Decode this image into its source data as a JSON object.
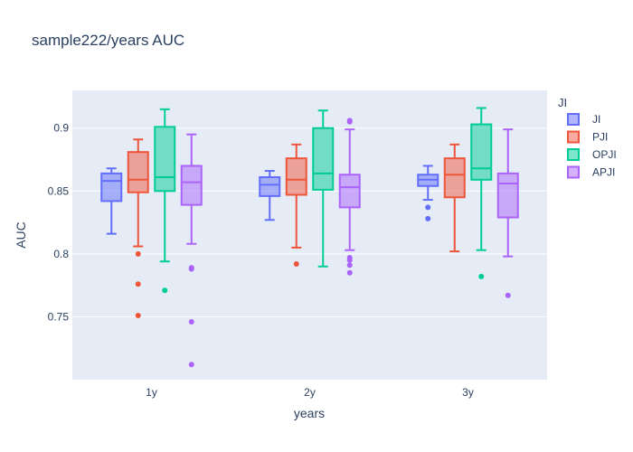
{
  "chart_data": {
    "type": "box",
    "title": "sample222/years AUC",
    "xlabel": "years",
    "ylabel": "AUC",
    "categories": [
      "1y",
      "2y",
      "3y"
    ],
    "ylim": [
      0.7,
      0.93
    ],
    "yticks": [
      0.75,
      0.8,
      0.85,
      0.9
    ],
    "ytick_labels": [
      "0.75",
      "0.8",
      "0.85",
      "0.9"
    ],
    "grid": true,
    "legend_title": "JI",
    "legend_position": "right",
    "series": [
      {
        "name": "JI",
        "color": "#636efa",
        "boxes": [
          {
            "lower_whisker": 0.816,
            "q1": 0.842,
            "median": 0.858,
            "q3": 0.864,
            "upper_whisker": 0.868,
            "outliers": []
          },
          {
            "lower_whisker": 0.827,
            "q1": 0.846,
            "median": 0.855,
            "q3": 0.861,
            "upper_whisker": 0.866,
            "outliers": []
          },
          {
            "lower_whisker": 0.843,
            "q1": 0.854,
            "median": 0.859,
            "q3": 0.863,
            "upper_whisker": 0.87,
            "outliers": [
              0.837,
              0.828
            ]
          }
        ]
      },
      {
        "name": "PJI",
        "color": "#ef553b",
        "boxes": [
          {
            "lower_whisker": 0.806,
            "q1": 0.849,
            "median": 0.859,
            "q3": 0.881,
            "upper_whisker": 0.891,
            "outliers": [
              0.8,
              0.776,
              0.751
            ]
          },
          {
            "lower_whisker": 0.805,
            "q1": 0.847,
            "median": 0.859,
            "q3": 0.876,
            "upper_whisker": 0.887,
            "outliers": [
              0.792
            ]
          },
          {
            "lower_whisker": 0.802,
            "q1": 0.845,
            "median": 0.863,
            "q3": 0.876,
            "upper_whisker": 0.887,
            "outliers": []
          }
        ]
      },
      {
        "name": "OPJI",
        "color": "#00cc96",
        "boxes": [
          {
            "lower_whisker": 0.794,
            "q1": 0.85,
            "median": 0.861,
            "q3": 0.901,
            "upper_whisker": 0.915,
            "outliers": [
              0.771
            ]
          },
          {
            "lower_whisker": 0.79,
            "q1": 0.851,
            "median": 0.864,
            "q3": 0.9,
            "upper_whisker": 0.914,
            "outliers": []
          },
          {
            "lower_whisker": 0.803,
            "q1": 0.859,
            "median": 0.868,
            "q3": 0.903,
            "upper_whisker": 0.916,
            "outliers": [
              0.782
            ]
          }
        ]
      },
      {
        "name": "APJI",
        "color": "#ab63fa",
        "boxes": [
          {
            "lower_whisker": 0.808,
            "q1": 0.839,
            "median": 0.857,
            "q3": 0.87,
            "upper_whisker": 0.895,
            "outliers": [
              0.789,
              0.788,
              0.746,
              0.712
            ]
          },
          {
            "lower_whisker": 0.803,
            "q1": 0.837,
            "median": 0.853,
            "q3": 0.863,
            "upper_whisker": 0.899,
            "outliers": [
              0.906,
              0.905,
              0.797,
              0.795,
              0.791,
              0.785
            ]
          },
          {
            "lower_whisker": 0.798,
            "q1": 0.829,
            "median": 0.856,
            "q3": 0.864,
            "upper_whisker": 0.899,
            "outliers": [
              0.767
            ]
          }
        ]
      }
    ]
  }
}
